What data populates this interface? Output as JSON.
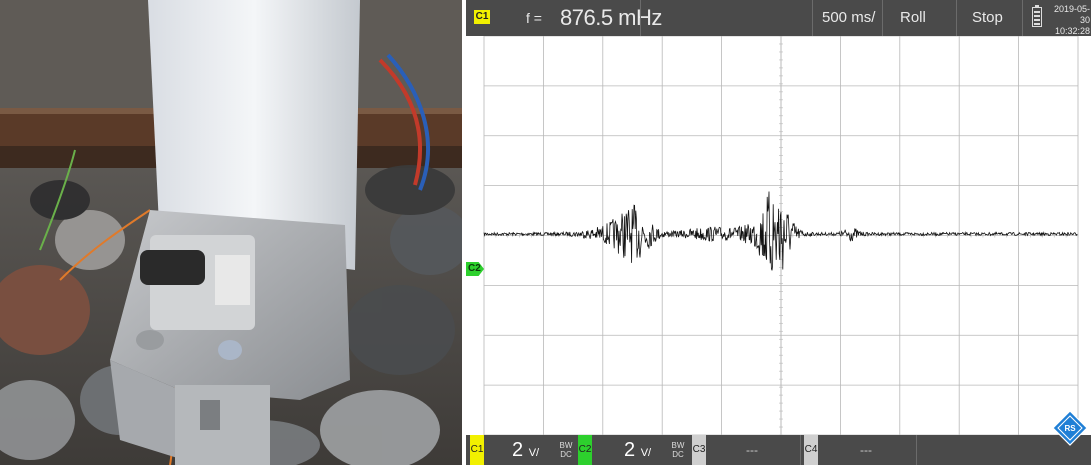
{
  "scope": {
    "top_bar": {
      "channel_badge": "C1",
      "freq_label": "f =",
      "freq_value": "876.5 mHz",
      "timebase": "500 ms/",
      "mode": "Roll",
      "run_state": "Stop",
      "date": "2019-05-30",
      "time": "10:32:28"
    },
    "trace_marker": "C2",
    "bottom_bar": {
      "ch1": {
        "label": "C1",
        "scale": "2",
        "unit": "V/",
        "bw": "BW",
        "coupling": "DC",
        "color": "#f2f000"
      },
      "ch2": {
        "label": "C2",
        "scale": "2",
        "unit": "V/",
        "bw": "BW",
        "coupling": "DC",
        "color": "#2dd02d"
      },
      "ch3": {
        "label": "C3",
        "value": "---"
      },
      "ch4": {
        "label": "C4",
        "value": "---"
      }
    },
    "colors": {
      "bar": "#4a4a4a",
      "grid": "#b8b8b8",
      "trace": "#111111",
      "ch1": "#f2f000",
      "ch2": "#2dd02d",
      "logo": "#1f7fd6"
    }
  },
  "photo": {
    "subject": "sensor-photo",
    "icon": "sensor-on-rail-image"
  }
}
